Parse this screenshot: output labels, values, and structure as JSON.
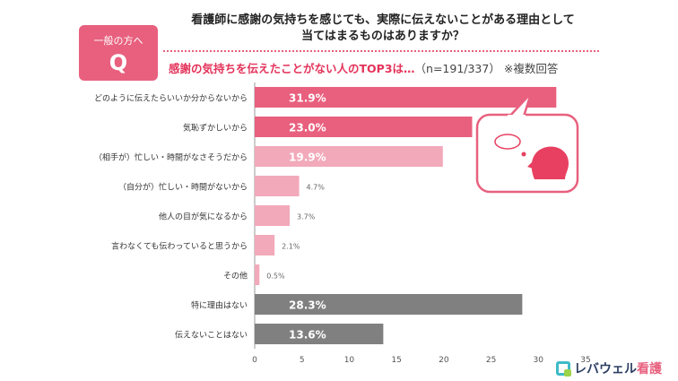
{
  "badge": {
    "label": "一般の方へ",
    "letter": "Q"
  },
  "title_line1": "看護師に感謝の気持ちを感じても、実際に伝えないことがある理由として",
  "title_line2": "当てはまるものはありますか？",
  "subtitle": {
    "highlight": "感謝の気持ちを伝えたことがない人のTOP3は…",
    "n": "（n=191/337）",
    "multi": "※複数回答"
  },
  "logo": {
    "brand": "レバウェル",
    "brand2": "看護"
  },
  "colors": {
    "top": "#e8607e",
    "light": "#f2a9ba",
    "gray": "#808080",
    "bubble_border": "#e8607e",
    "axis": "#999999"
  },
  "chart_data": {
    "type": "bar",
    "orientation": "horizontal",
    "categories": [
      "どのように伝えたらいいか分からないから",
      "気恥ずかしいから",
      "（相手が）忙しい・時間がなさそうだから",
      "（自分が）忙しい・時間がないから",
      "他人の目が気になるから",
      "言わなくても伝わっていると思うから",
      "その他",
      "特に理由はない",
      "伝えないことはない"
    ],
    "values": [
      31.9,
      23.0,
      19.9,
      4.7,
      3.7,
      2.1,
      0.5,
      28.3,
      13.6
    ],
    "labels": [
      "31.9%",
      "23.0%",
      "19.9%",
      "4.7%",
      "3.7%",
      "2.1%",
      "0.5%",
      "28.3%",
      "13.6%"
    ],
    "bar_colors": [
      "top",
      "top",
      "light",
      "light",
      "light",
      "light",
      "light",
      "gray",
      "gray"
    ],
    "xlim": [
      0,
      35
    ],
    "xticks": [
      0,
      5,
      10,
      15,
      20,
      25,
      30,
      35
    ],
    "xtick_labels": [
      "0",
      "5",
      "10",
      "15",
      "20",
      "25",
      "30",
      "35"
    ]
  }
}
